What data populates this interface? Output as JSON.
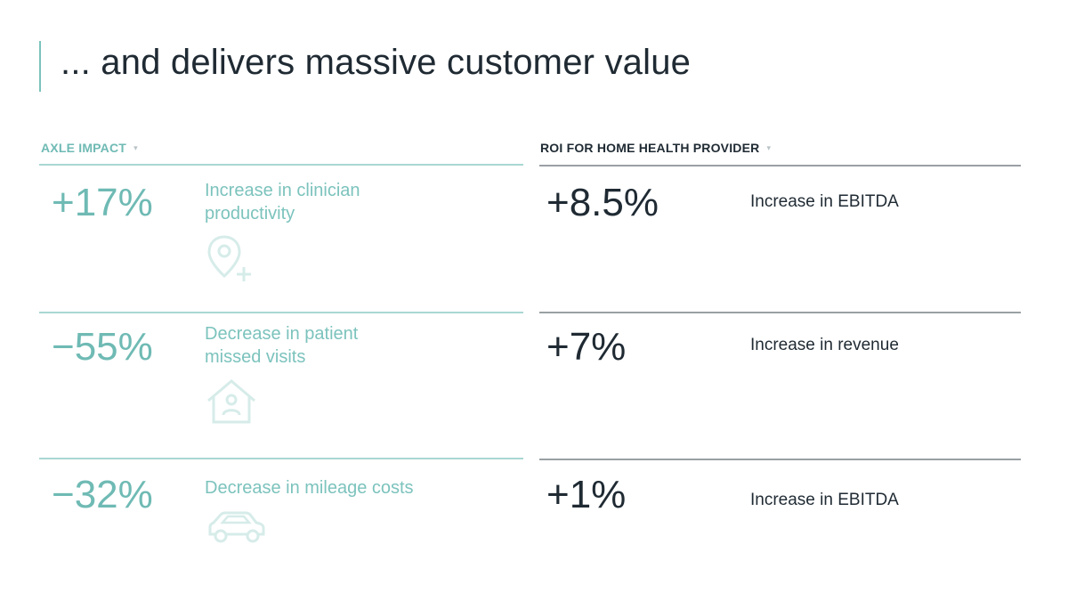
{
  "title": "... and delivers massive customer value",
  "columns": {
    "left_header": "AXLE IMPACT",
    "right_header": "ROI FOR HOME HEALTH PROVIDER",
    "caret": "▾"
  },
  "rows": [
    {
      "impact_value": "+17%",
      "impact_line1": "Increase in clinician",
      "impact_line2": "productivity",
      "icon": "location-pin-plus-icon",
      "roi_value": "+8.5%",
      "roi_label": "Increase in EBITDA"
    },
    {
      "impact_value": "−55%",
      "impact_line1": "Decrease in patient",
      "impact_line2": "missed visits",
      "icon": "house-person-icon",
      "roi_value": "+7%",
      "roi_label": "Increase in revenue"
    },
    {
      "impact_value": "−32%",
      "impact_line1": "Decrease in mileage costs",
      "impact_line2": "",
      "icon": "car-icon",
      "roi_value": "+1%",
      "roi_label": "Increase in EBITDA"
    }
  ],
  "colors": {
    "accent_teal": "#6fbab4",
    "text_dark": "#1f2a33",
    "icon_faint": "#d6ece9"
  }
}
